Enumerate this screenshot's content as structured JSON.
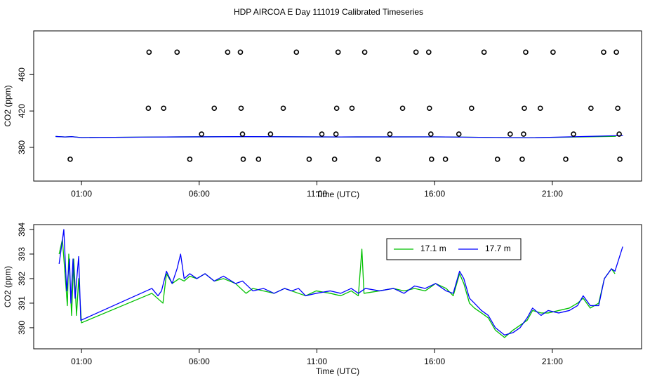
{
  "chart_data": [
    {
      "type": "line",
      "title": "HDP AIRCOA E  Day 111019  Calibrated Timeseries",
      "xlabel": "Time (UTC)",
      "ylabel": "CO2 (ppm)",
      "xlim": [
        -1.03,
        24.79
      ],
      "ylim": [
        343,
        508
      ],
      "xticks": [
        {
          "value": 1,
          "label": "01:00"
        },
        {
          "value": 6,
          "label": "06:00"
        },
        {
          "value": 11,
          "label": "11:00"
        },
        {
          "value": 16,
          "label": "16:00"
        },
        {
          "value": 21,
          "label": "21:00"
        }
      ],
      "yticks": [
        380,
        420,
        460
      ],
      "series": [
        {
          "color": "#00c000",
          "style": "line",
          "x": [
            -0.1,
            0.3,
            0.6,
            1.0,
            4.0,
            8.0,
            12.0,
            16.0,
            20.0,
            23.7
          ],
          "values": [
            392,
            391.5,
            391.8,
            390.8,
            391.4,
            391.8,
            391.5,
            391.6,
            390.5,
            392.2
          ]
        },
        {
          "color": "#0000ff",
          "style": "line",
          "x": [
            -0.1,
            0.3,
            0.6,
            1.0,
            4.0,
            8.0,
            12.0,
            16.0,
            20.0,
            24.0
          ],
          "values": [
            392,
            391.5,
            391.8,
            390.8,
            391.4,
            391.8,
            391.5,
            391.6,
            390.5,
            393
          ]
        },
        {
          "color": "#000000",
          "style": "points",
          "x": [
            3.87,
            5.06,
            7.21,
            7.75,
            10.13,
            11.9,
            13.03,
            15.21,
            15.75,
            18.1,
            19.87,
            21.03,
            23.18,
            23.72,
            3.84,
            4.49,
            6.64,
            7.78,
            9.57,
            11.84,
            12.49,
            14.64,
            15.78,
            17.57,
            19.81,
            20.49,
            22.64,
            23.78,
            6.1,
            7.84,
            9.03,
            11.21,
            11.81,
            14.1,
            15.84,
            17.03,
            19.21,
            19.78,
            21.9,
            23.84,
            0.52,
            5.6,
            7.87,
            8.52,
            10.67,
            11.75,
            13.6,
            15.87,
            16.46,
            18.67,
            19.72,
            21.57,
            23.87
          ],
          "values": [
            484.6,
            484.6,
            484.6,
            484.6,
            484.6,
            484.6,
            484.6,
            484.6,
            484.6,
            484.6,
            484.6,
            484.6,
            484.6,
            484.6,
            423,
            423,
            423,
            423,
            423,
            423,
            423,
            423,
            423,
            423,
            423,
            423,
            423,
            423,
            394.6,
            394.6,
            394.6,
            394.6,
            394.6,
            394.6,
            394.6,
            394.6,
            394.6,
            394.6,
            394.6,
            394.6,
            367,
            367,
            367,
            367,
            367,
            367,
            367,
            367,
            367,
            367,
            367,
            367,
            367
          ]
        }
      ]
    },
    {
      "type": "line",
      "xlabel": "Time (UTC)",
      "ylabel": "CO2 (ppm)",
      "xlim": [
        -1.03,
        24.79
      ],
      "ylim": [
        389.14,
        394.2
      ],
      "xticks": [
        {
          "value": 1,
          "label": "01:00"
        },
        {
          "value": 6,
          "label": "06:00"
        },
        {
          "value": 11,
          "label": "11:00"
        },
        {
          "value": 16,
          "label": "16:00"
        },
        {
          "value": 21,
          "label": "21:00"
        }
      ],
      "yticks": [
        390,
        391,
        392,
        393,
        394
      ],
      "legend": "top-right",
      "series": [
        {
          "name": "17.1 m",
          "color": "#00c000",
          "style": "line",
          "x": [
            0.05,
            0.19,
            0.4,
            0.46,
            0.58,
            0.67,
            0.79,
            0.88,
            1.0,
            3.99,
            4.46,
            4.61,
            4.85,
            5.15,
            5.36,
            5.6,
            5.9,
            6.25,
            6.64,
            7.03,
            7.54,
            7.99,
            8.28,
            8.73,
            9.18,
            9.63,
            9.93,
            10.22,
            10.52,
            10.97,
            11.57,
            12.01,
            12.46,
            12.76,
            12.91,
            13.0,
            13.66,
            14.25,
            14.7,
            15.15,
            15.6,
            16.04,
            16.49,
            16.79,
            17.06,
            17.24,
            17.48,
            17.69,
            17.99,
            18.28,
            18.58,
            18.97,
            19.33,
            19.63,
            19.93,
            20.16,
            20.52,
            20.82,
            21.27,
            21.72,
            22.07,
            22.31,
            22.61,
            22.97,
            23.21,
            23.51,
            23.66
          ],
          "values": [
            393.0,
            393.6,
            390.9,
            393.0,
            390.5,
            392.8,
            390.5,
            392.0,
            390.2,
            391.4,
            391.0,
            392.2,
            391.8,
            392.0,
            391.9,
            392.1,
            392.0,
            392.2,
            391.9,
            392.0,
            391.8,
            391.4,
            391.6,
            391.5,
            391.4,
            391.6,
            391.5,
            391.4,
            391.3,
            391.5,
            391.4,
            391.3,
            391.5,
            391.3,
            393.2,
            391.4,
            391.5,
            391.6,
            391.5,
            391.6,
            391.5,
            391.8,
            391.6,
            391.3,
            392.2,
            391.8,
            391.0,
            390.8,
            390.6,
            390.4,
            389.9,
            389.6,
            389.9,
            390.1,
            390.3,
            390.7,
            390.6,
            390.6,
            390.7,
            390.8,
            391.0,
            391.2,
            390.8,
            391.0,
            392.0,
            392.4,
            392.2
          ]
        },
        {
          "name": "17.7 m",
          "color": "#0000ff",
          "style": "line",
          "x": [
            0.05,
            0.25,
            0.37,
            0.49,
            0.55,
            0.64,
            0.73,
            0.88,
            0.97,
            3.99,
            4.25,
            4.4,
            4.61,
            4.85,
            5.06,
            5.21,
            5.36,
            5.6,
            5.9,
            6.25,
            6.64,
            7.03,
            7.54,
            7.84,
            8.28,
            8.73,
            9.18,
            9.63,
            9.93,
            10.22,
            10.52,
            10.97,
            11.57,
            12.01,
            12.46,
            12.76,
            13.06,
            13.66,
            14.25,
            14.7,
            15.15,
            15.6,
            16.04,
            16.49,
            16.79,
            17.06,
            17.24,
            17.48,
            17.69,
            17.99,
            18.28,
            18.58,
            18.97,
            19.33,
            19.63,
            19.93,
            20.16,
            20.52,
            20.82,
            21.27,
            21.72,
            22.07,
            22.31,
            22.61,
            22.97,
            23.21,
            23.51,
            23.66,
            23.99
          ],
          "values": [
            392.6,
            394.0,
            391.5,
            392.8,
            391.0,
            392.8,
            391.2,
            392.9,
            390.3,
            391.6,
            391.3,
            391.5,
            392.3,
            391.8,
            392.4,
            393.0,
            392.0,
            392.2,
            392.0,
            392.2,
            391.9,
            392.1,
            391.8,
            391.9,
            391.5,
            391.6,
            391.4,
            391.6,
            391.5,
            391.6,
            391.3,
            391.4,
            391.5,
            391.4,
            391.6,
            391.4,
            391.6,
            391.5,
            391.6,
            391.4,
            391.7,
            391.6,
            391.8,
            391.5,
            391.4,
            392.3,
            392.0,
            391.2,
            391.0,
            390.7,
            390.5,
            390.0,
            389.7,
            389.8,
            390.0,
            390.4,
            390.8,
            390.5,
            390.7,
            390.6,
            390.7,
            390.9,
            391.3,
            390.9,
            390.9,
            392.0,
            392.4,
            392.3,
            393.3
          ]
        }
      ]
    }
  ]
}
